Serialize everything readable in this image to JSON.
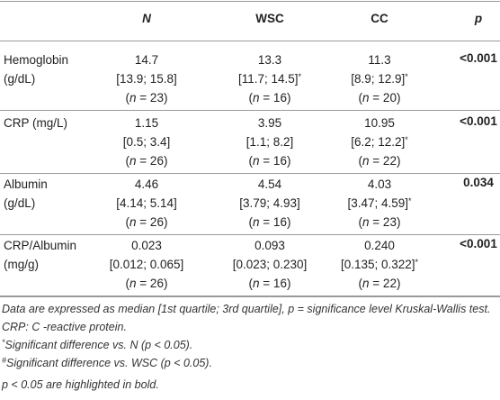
{
  "table": {
    "header": [
      {
        "text": "N",
        "italic": true
      },
      {
        "text": "WSC"
      },
      {
        "text": "CC"
      },
      {
        "text": "p",
        "italic": true
      }
    ],
    "rows": [
      {
        "label": [
          "Hemoglobin",
          "(g/dL)"
        ],
        "cells": [
          [
            [
              "14.7"
            ],
            [
              "[13.9; 15.8]"
            ],
            [
              "(",
              {
                "text": "n",
                "italic": true
              },
              " = 23)"
            ]
          ],
          [
            [
              "13.3"
            ],
            [
              "[11.7; 14.5]",
              {
                "text": "*",
                "sup": true
              }
            ],
            [
              "(",
              {
                "text": "n",
                "italic": true
              },
              " = 16)"
            ]
          ],
          [
            [
              "11.3"
            ],
            [
              "[8.9; 12.9]",
              {
                "text": "*",
                "sup": true
              }
            ],
            [
              "(",
              {
                "text": "n",
                "italic": true
              },
              " = 20)"
            ]
          ]
        ],
        "p": "<0.001"
      },
      {
        "label": [
          "CRP (mg/L)"
        ],
        "cells": [
          [
            [
              "1.15"
            ],
            [
              "[0.5; 3.4]"
            ],
            [
              "(",
              {
                "text": "n",
                "italic": true
              },
              " = 26)"
            ]
          ],
          [
            [
              "3.95"
            ],
            [
              "[1.1; 8.2]"
            ],
            [
              "(",
              {
                "text": "n",
                "italic": true
              },
              " = 16)"
            ]
          ],
          [
            [
              "10.95"
            ],
            [
              "[6.2; 12.2]",
              {
                "text": "*",
                "sup": true
              }
            ],
            [
              "(",
              {
                "text": "n",
                "italic": true
              },
              " = 22)"
            ]
          ]
        ],
        "p": "<0.001"
      },
      {
        "label": [
          "Albumin",
          "(g/dL)"
        ],
        "cells": [
          [
            [
              "4.46"
            ],
            [
              "[4.14; 5.14]"
            ],
            [
              "(",
              {
                "text": "n",
                "italic": true
              },
              " = 26)"
            ]
          ],
          [
            [
              "4.54"
            ],
            [
              "[3.79; 4.93]"
            ],
            [
              "(",
              {
                "text": "n",
                "italic": true
              },
              " = 16)"
            ]
          ],
          [
            [
              "4.03"
            ],
            [
              "[3.47; 4.59]",
              {
                "text": "*",
                "sup": true
              }
            ],
            [
              "(",
              {
                "text": "n",
                "italic": true
              },
              " = 23)"
            ]
          ]
        ],
        "p": "0.034"
      },
      {
        "label": [
          "CRP/Albumin",
          "(mg/g)"
        ],
        "cells": [
          [
            [
              "0.023"
            ],
            [
              "[0.012; 0.065]"
            ],
            [
              "(",
              {
                "text": "n",
                "italic": true
              },
              " = 26)"
            ]
          ],
          [
            [
              "0.093"
            ],
            [
              "[0.023; 0.230]"
            ],
            [
              "(",
              {
                "text": "n",
                "italic": true
              },
              " = 16)"
            ]
          ],
          [
            [
              "0.240"
            ],
            [
              "[0.135; 0.322]",
              {
                "text": "*",
                "sup": true
              }
            ],
            [
              "(",
              {
                "text": "n",
                "italic": true
              },
              " = 22)"
            ]
          ]
        ],
        "p": "<0.001"
      }
    ],
    "footnotes": [
      [
        "Data are expressed as median [1st quartile; 3rd quartile], p = significance level Kruskal-Wallis test. CRP: C -reactive protein."
      ],
      [
        {
          "text": "*",
          "sup": true
        },
        "Significant difference vs. N (p < 0.05)."
      ],
      [
        {
          "text": "#",
          "sup": true
        },
        "Significant difference vs. WSC (p < 0.05)."
      ],
      [
        "p < 0.05 are highlighted in bold."
      ]
    ]
  }
}
